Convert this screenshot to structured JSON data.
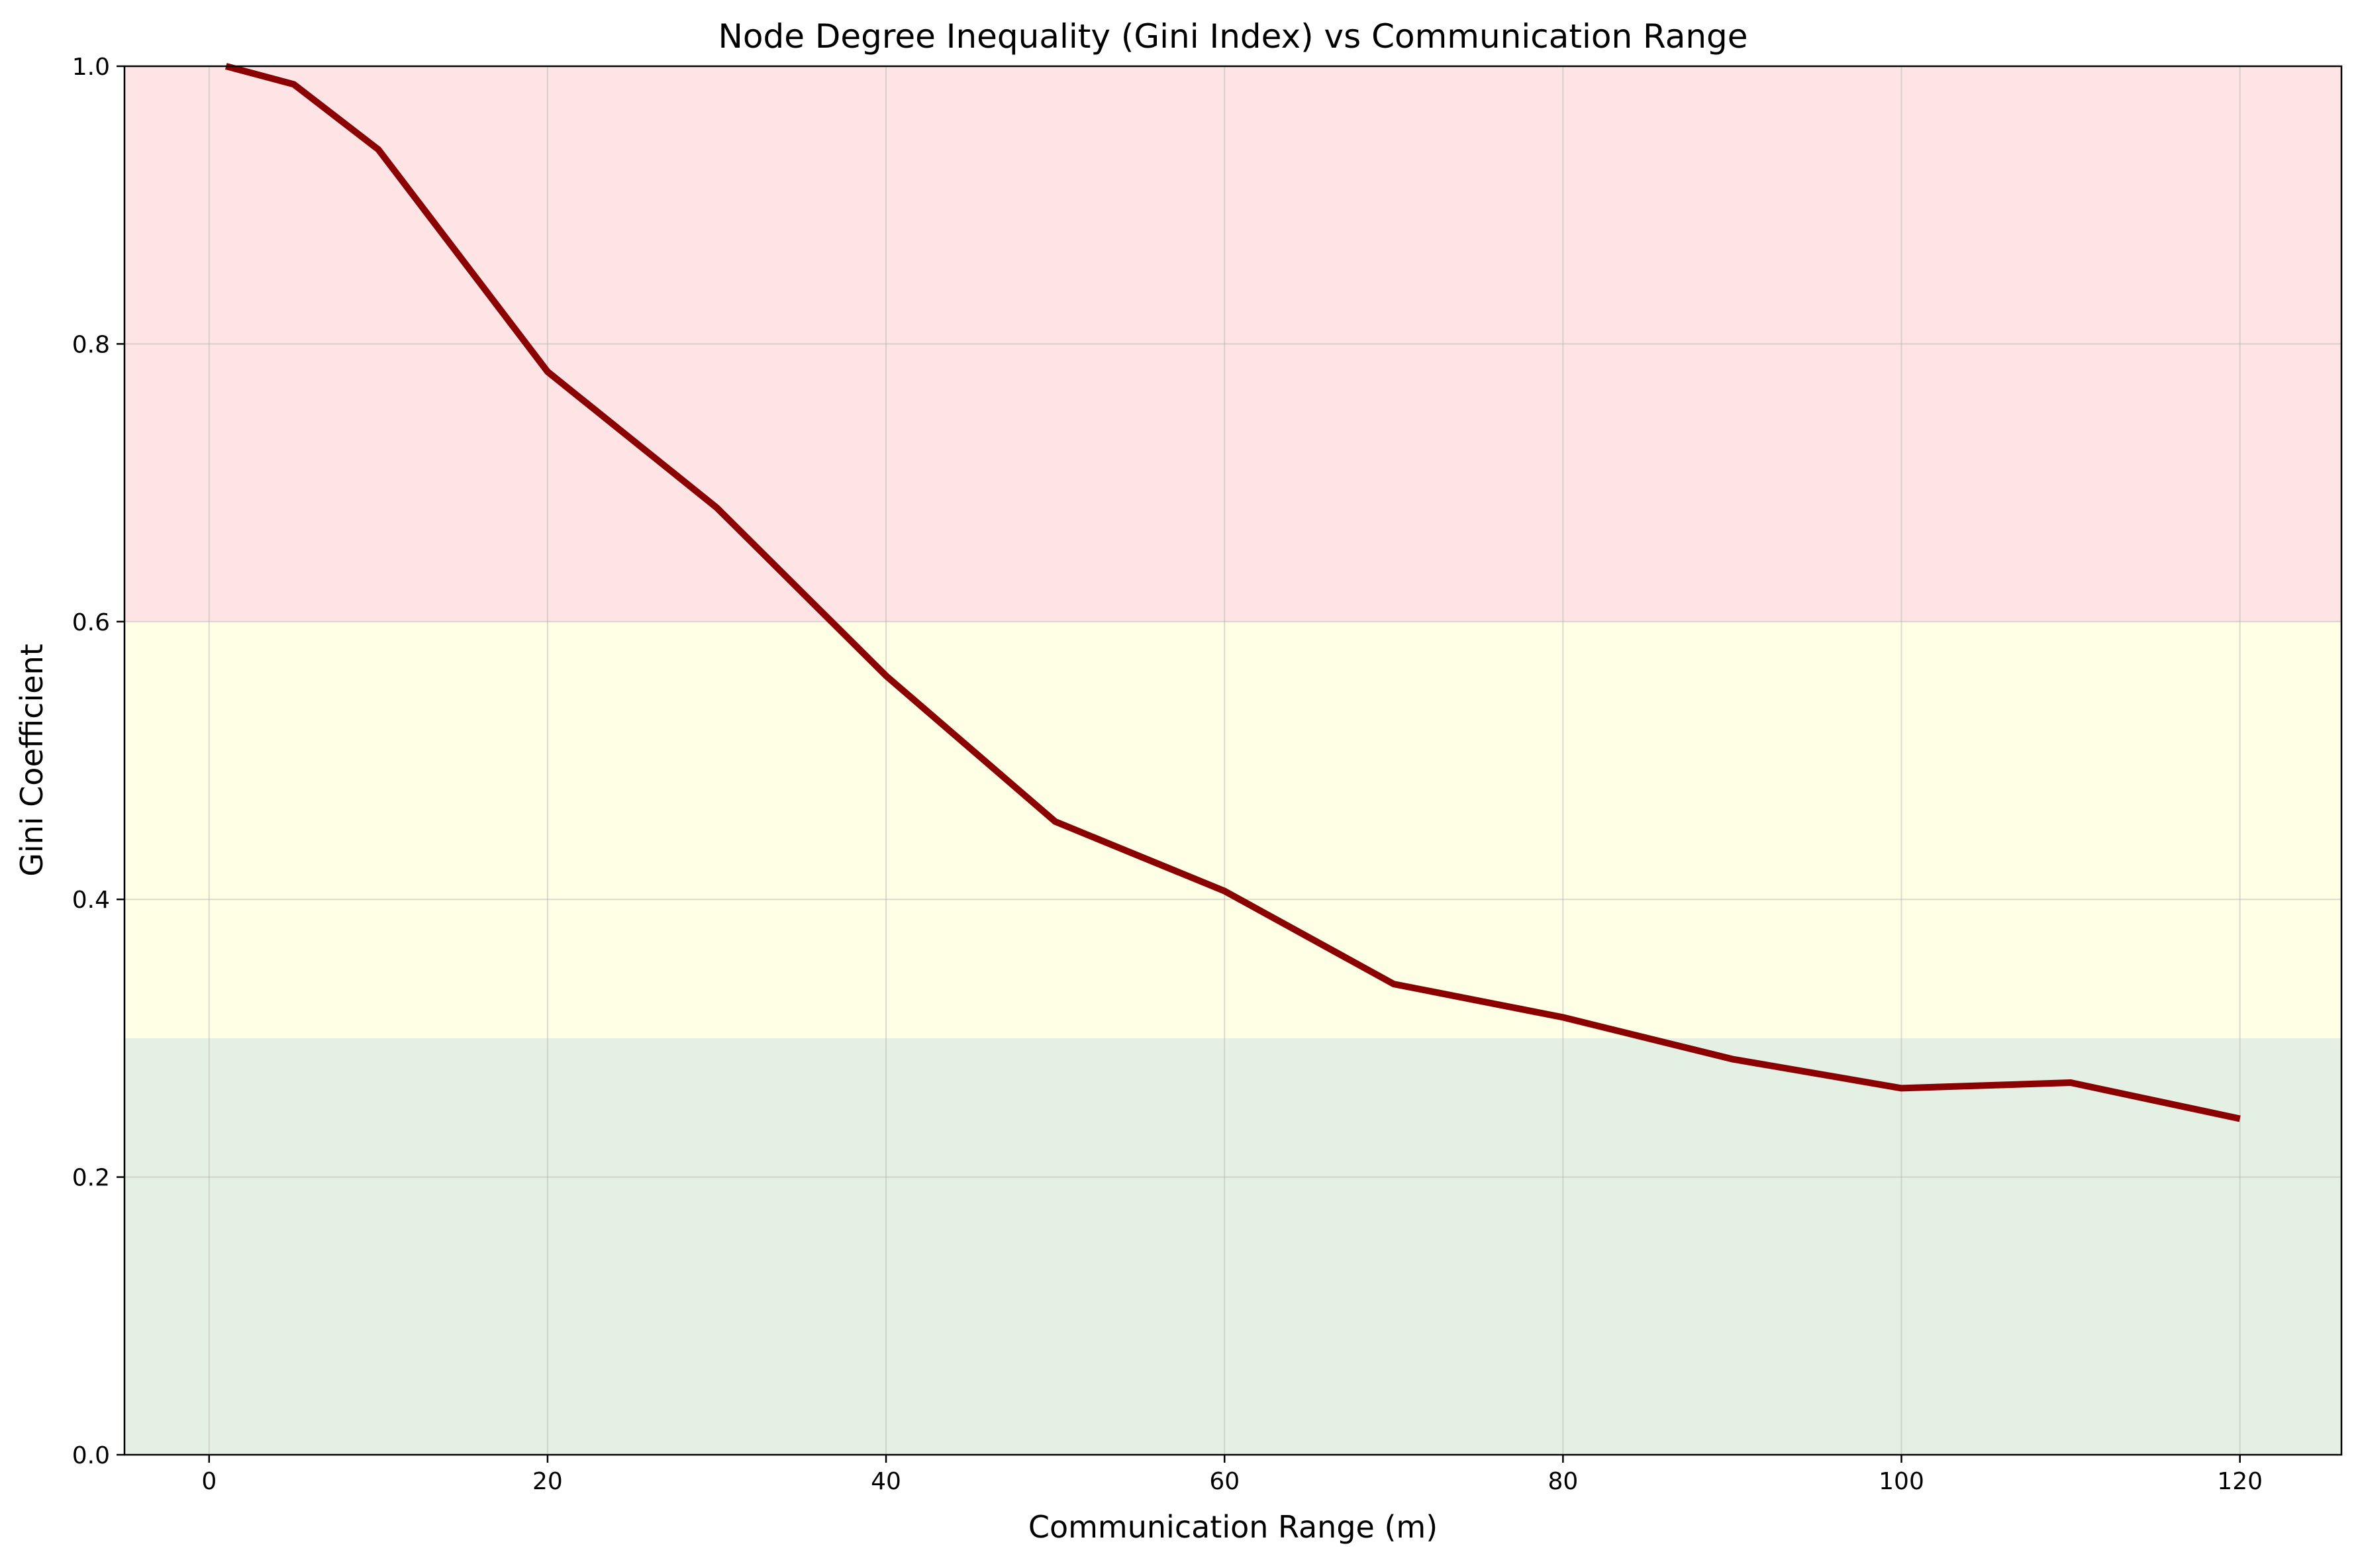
{
  "chart_data": {
    "type": "line",
    "title": "Node Degree Inequality (Gini Index) vs Communication Range",
    "xlabel": "Communication Range (m)",
    "ylabel": "Gini Coefficient",
    "xlim": [
      -5,
      126
    ],
    "ylim": [
      0.0,
      1.0
    ],
    "x_ticks": [
      0,
      20,
      40,
      60,
      80,
      100,
      120
    ],
    "y_ticks": [
      0.0,
      0.2,
      0.4,
      0.6,
      0.8,
      1.0
    ],
    "x_tick_labels": [
      "0",
      "20",
      "40",
      "60",
      "80",
      "100",
      "120"
    ],
    "y_tick_labels": [
      "0.0",
      "0.2",
      "0.4",
      "0.6",
      "0.8",
      "1.0"
    ],
    "grid": true,
    "bands": [
      {
        "y0": 0.0,
        "y1": 0.3,
        "color": "#e5f0e5"
      },
      {
        "y0": 0.3,
        "y1": 0.6,
        "color": "#ffffe5"
      },
      {
        "y0": 0.6,
        "y1": 1.0,
        "color": "#ffe4e6"
      }
    ],
    "series": [
      {
        "color": "#8b0000",
        "x": [
          1,
          5,
          10,
          20,
          30,
          40,
          50,
          60,
          70,
          80,
          90,
          100,
          110,
          120
        ],
        "y": [
          1.0,
          0.987,
          0.94,
          0.78,
          0.682,
          0.561,
          0.456,
          0.406,
          0.339,
          0.315,
          0.285,
          0.264,
          0.268,
          0.242
        ]
      }
    ]
  }
}
